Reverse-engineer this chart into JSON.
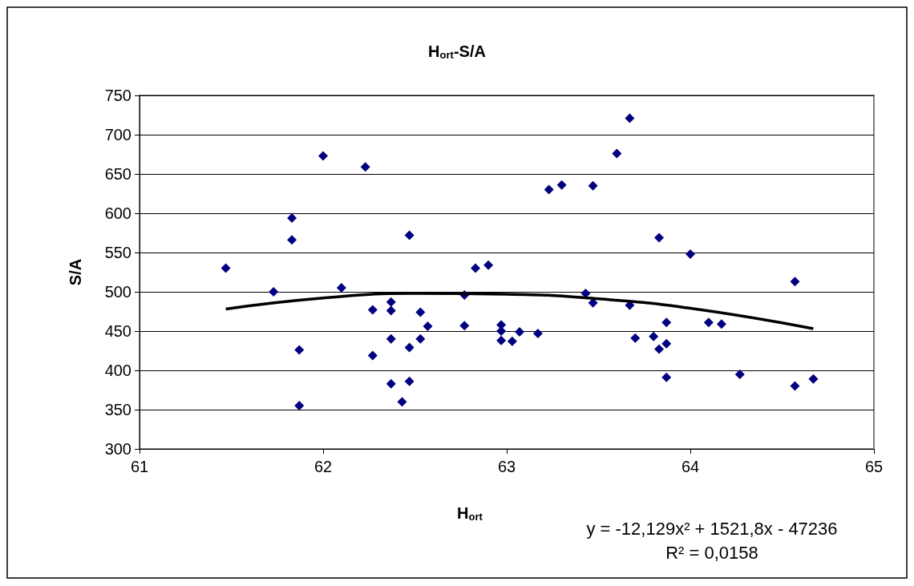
{
  "chart_data": {
    "type": "scatter",
    "title": "H$_{ort}$-S/A",
    "xlabel": "H$_{ort}$",
    "ylabel": "S/A",
    "annotations": [
      "y = -12,129x² + 1521,8x - 47236",
      "R² = 0,0158"
    ],
    "xlim": [
      61,
      65
    ],
    "xticks": [
      61,
      62,
      63,
      64,
      65
    ],
    "ylim": [
      300,
      750
    ],
    "yticks": [
      300,
      350,
      400,
      450,
      500,
      550,
      600,
      650,
      700,
      750
    ],
    "grid": "y",
    "marker": "diamond",
    "series": [
      {
        "color": "#000080",
        "x": [
          61.47,
          61.73,
          61.83,
          61.83,
          61.87,
          61.87,
          62.0,
          62.1,
          62.23,
          62.27,
          62.27,
          62.37,
          62.37,
          62.37,
          62.37,
          62.43,
          62.47,
          62.47,
          62.47,
          62.53,
          62.53,
          62.57,
          62.77,
          62.77,
          62.83,
          62.9,
          62.97,
          62.97,
          62.97,
          63.03,
          63.07,
          63.17,
          63.23,
          63.3,
          63.43,
          63.47,
          63.47,
          63.6,
          63.67,
          63.67,
          63.7,
          63.8,
          63.83,
          63.83,
          63.87,
          63.87,
          63.87,
          64.0,
          64.1,
          64.17,
          64.27,
          64.57,
          64.57,
          64.67
        ],
        "values": [
          530,
          500,
          594,
          566,
          426,
          355,
          673,
          505,
          659,
          477,
          419,
          487,
          476,
          440,
          383,
          360,
          572,
          429,
          386,
          474,
          440,
          456,
          496,
          457,
          530,
          534,
          458,
          450,
          438,
          437,
          449,
          447,
          630,
          636,
          498,
          635,
          486,
          676,
          721,
          483,
          441,
          443,
          569,
          427,
          461,
          434,
          391,
          548,
          461,
          459,
          395,
          513,
          380,
          389
        ]
      },
      {
        "type": "line",
        "color": "#000000",
        "marker": "none",
        "x": [
          61.47,
          62,
          62.5,
          63,
          63.5,
          64,
          64.67
        ],
        "values": [
          478,
          492,
          498,
          497,
          491,
          479,
          453
        ]
      }
    ]
  }
}
